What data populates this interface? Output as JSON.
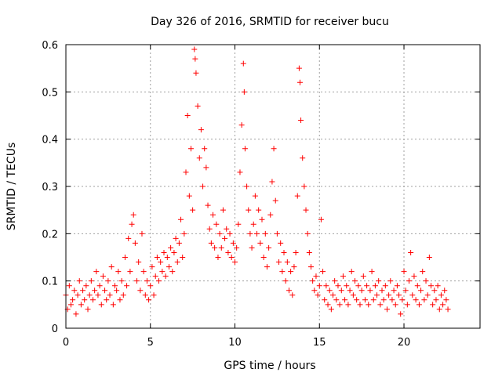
{
  "chart_data": {
    "type": "scatter",
    "title": "Day 326 of 2016, SRMTID for receiver bucu",
    "xlabel": "GPS time / hours",
    "ylabel": "SRMTID / TECUs",
    "xlim": [
      0,
      24.5
    ],
    "ylim": [
      0,
      0.6
    ],
    "x_ticks": [
      0,
      5,
      10,
      15,
      20
    ],
    "x_tick_labels": [
      "0",
      "5",
      "10",
      "15",
      "20"
    ],
    "y_ticks": [
      0,
      0.1,
      0.2,
      0.3,
      0.4,
      0.5,
      0.6
    ],
    "y_tick_labels": [
      "0",
      "0.1",
      "0.2",
      "0.3",
      "0.4",
      "0.5",
      "0.6"
    ],
    "grid": true,
    "marker": "+",
    "color": "#ff0000",
    "series": [
      {
        "name": "SRMTID",
        "points": [
          [
            0.0,
            0.07
          ],
          [
            0.1,
            0.04
          ],
          [
            0.2,
            0.09
          ],
          [
            0.3,
            0.05
          ],
          [
            0.4,
            0.06
          ],
          [
            0.5,
            0.08
          ],
          [
            0.6,
            0.03
          ],
          [
            0.7,
            0.07
          ],
          [
            0.8,
            0.1
          ],
          [
            0.9,
            0.05
          ],
          [
            1.0,
            0.08
          ],
          [
            1.1,
            0.06
          ],
          [
            1.2,
            0.09
          ],
          [
            1.3,
            0.04
          ],
          [
            1.4,
            0.07
          ],
          [
            1.5,
            0.1
          ],
          [
            1.6,
            0.06
          ],
          [
            1.7,
            0.08
          ],
          [
            1.8,
            0.12
          ],
          [
            1.9,
            0.07
          ],
          [
            2.0,
            0.09
          ],
          [
            2.1,
            0.05
          ],
          [
            2.2,
            0.11
          ],
          [
            2.3,
            0.08
          ],
          [
            2.4,
            0.06
          ],
          [
            2.5,
            0.1
          ],
          [
            2.6,
            0.07
          ],
          [
            2.7,
            0.13
          ],
          [
            2.8,
            0.05
          ],
          [
            2.9,
            0.09
          ],
          [
            3.0,
            0.08
          ],
          [
            3.1,
            0.12
          ],
          [
            3.2,
            0.06
          ],
          [
            3.3,
            0.1
          ],
          [
            3.4,
            0.07
          ],
          [
            3.5,
            0.15
          ],
          [
            3.6,
            0.09
          ],
          [
            3.7,
            0.19
          ],
          [
            3.8,
            0.12
          ],
          [
            3.9,
            0.22
          ],
          [
            4.0,
            0.24
          ],
          [
            4.1,
            0.18
          ],
          [
            4.2,
            0.1
          ],
          [
            4.3,
            0.14
          ],
          [
            4.4,
            0.08
          ],
          [
            4.5,
            0.2
          ],
          [
            4.6,
            0.12
          ],
          [
            4.7,
            0.07
          ],
          [
            4.8,
            0.1
          ],
          [
            4.9,
            0.06
          ],
          [
            5.0,
            0.09
          ],
          [
            5.1,
            0.13
          ],
          [
            5.2,
            0.07
          ],
          [
            5.3,
            0.11
          ],
          [
            5.4,
            0.15
          ],
          [
            5.5,
            0.1
          ],
          [
            5.6,
            0.14
          ],
          [
            5.7,
            0.12
          ],
          [
            5.8,
            0.16
          ],
          [
            5.9,
            0.11
          ],
          [
            6.0,
            0.15
          ],
          [
            6.1,
            0.13
          ],
          [
            6.2,
            0.17
          ],
          [
            6.3,
            0.12
          ],
          [
            6.4,
            0.16
          ],
          [
            6.5,
            0.19
          ],
          [
            6.6,
            0.14
          ],
          [
            6.7,
            0.18
          ],
          [
            6.8,
            0.23
          ],
          [
            6.9,
            0.15
          ],
          [
            7.0,
            0.2
          ],
          [
            7.1,
            0.33
          ],
          [
            7.2,
            0.45
          ],
          [
            7.3,
            0.28
          ],
          [
            7.4,
            0.38
          ],
          [
            7.5,
            0.25
          ],
          [
            7.6,
            0.59
          ],
          [
            7.65,
            0.57
          ],
          [
            7.7,
            0.54
          ],
          [
            7.8,
            0.47
          ],
          [
            7.9,
            0.36
          ],
          [
            8.0,
            0.42
          ],
          [
            8.1,
            0.3
          ],
          [
            8.2,
            0.38
          ],
          [
            8.3,
            0.34
          ],
          [
            8.4,
            0.26
          ],
          [
            8.5,
            0.21
          ],
          [
            8.6,
            0.18
          ],
          [
            8.7,
            0.24
          ],
          [
            8.8,
            0.17
          ],
          [
            8.9,
            0.22
          ],
          [
            9.0,
            0.15
          ],
          [
            9.1,
            0.2
          ],
          [
            9.2,
            0.17
          ],
          [
            9.3,
            0.25
          ],
          [
            9.4,
            0.19
          ],
          [
            9.5,
            0.21
          ],
          [
            9.6,
            0.16
          ],
          [
            9.7,
            0.2
          ],
          [
            9.8,
            0.15
          ],
          [
            9.9,
            0.18
          ],
          [
            10.0,
            0.14
          ],
          [
            10.1,
            0.17
          ],
          [
            10.2,
            0.22
          ],
          [
            10.3,
            0.33
          ],
          [
            10.4,
            0.43
          ],
          [
            10.5,
            0.56
          ],
          [
            10.55,
            0.5
          ],
          [
            10.6,
            0.38
          ],
          [
            10.7,
            0.3
          ],
          [
            10.8,
            0.25
          ],
          [
            10.9,
            0.2
          ],
          [
            11.0,
            0.17
          ],
          [
            11.1,
            0.22
          ],
          [
            11.2,
            0.28
          ],
          [
            11.3,
            0.2
          ],
          [
            11.4,
            0.25
          ],
          [
            11.5,
            0.18
          ],
          [
            11.6,
            0.23
          ],
          [
            11.7,
            0.15
          ],
          [
            11.8,
            0.2
          ],
          [
            11.9,
            0.13
          ],
          [
            12.0,
            0.17
          ],
          [
            12.1,
            0.24
          ],
          [
            12.2,
            0.31
          ],
          [
            12.3,
            0.38
          ],
          [
            12.4,
            0.27
          ],
          [
            12.5,
            0.2
          ],
          [
            12.6,
            0.14
          ],
          [
            12.7,
            0.18
          ],
          [
            12.8,
            0.12
          ],
          [
            12.9,
            0.16
          ],
          [
            13.0,
            0.1
          ],
          [
            13.1,
            0.14
          ],
          [
            13.2,
            0.08
          ],
          [
            13.3,
            0.12
          ],
          [
            13.4,
            0.07
          ],
          [
            13.5,
            0.13
          ],
          [
            13.6,
            0.16
          ],
          [
            13.7,
            0.28
          ],
          [
            13.8,
            0.55
          ],
          [
            13.85,
            0.52
          ],
          [
            13.9,
            0.44
          ],
          [
            14.0,
            0.36
          ],
          [
            14.1,
            0.3
          ],
          [
            14.2,
            0.25
          ],
          [
            14.3,
            0.2
          ],
          [
            14.4,
            0.16
          ],
          [
            14.5,
            0.13
          ],
          [
            14.6,
            0.1
          ],
          [
            14.7,
            0.08
          ],
          [
            14.8,
            0.11
          ],
          [
            14.9,
            0.07
          ],
          [
            15.0,
            0.09
          ],
          [
            15.1,
            0.23
          ],
          [
            15.2,
            0.12
          ],
          [
            15.3,
            0.06
          ],
          [
            15.4,
            0.09
          ],
          [
            15.5,
            0.05
          ],
          [
            15.6,
            0.08
          ],
          [
            15.7,
            0.04
          ],
          [
            15.8,
            0.07
          ],
          [
            15.9,
            0.1
          ],
          [
            16.0,
            0.06
          ],
          [
            16.1,
            0.09
          ],
          [
            16.2,
            0.05
          ],
          [
            16.3,
            0.08
          ],
          [
            16.4,
            0.11
          ],
          [
            16.5,
            0.06
          ],
          [
            16.6,
            0.09
          ],
          [
            16.7,
            0.05
          ],
          [
            16.8,
            0.08
          ],
          [
            16.9,
            0.12
          ],
          [
            17.0,
            0.07
          ],
          [
            17.1,
            0.1
          ],
          [
            17.2,
            0.06
          ],
          [
            17.3,
            0.09
          ],
          [
            17.4,
            0.05
          ],
          [
            17.5,
            0.08
          ],
          [
            17.6,
            0.11
          ],
          [
            17.7,
            0.06
          ],
          [
            17.8,
            0.09
          ],
          [
            17.9,
            0.05
          ],
          [
            18.0,
            0.08
          ],
          [
            18.1,
            0.12
          ],
          [
            18.2,
            0.06
          ],
          [
            18.3,
            0.09
          ],
          [
            18.4,
            0.07
          ],
          [
            18.5,
            0.1
          ],
          [
            18.6,
            0.05
          ],
          [
            18.7,
            0.08
          ],
          [
            18.8,
            0.06
          ],
          [
            18.9,
            0.09
          ],
          [
            19.0,
            0.04
          ],
          [
            19.1,
            0.07
          ],
          [
            19.2,
            0.1
          ],
          [
            19.3,
            0.06
          ],
          [
            19.4,
            0.08
          ],
          [
            19.5,
            0.05
          ],
          [
            19.6,
            0.09
          ],
          [
            19.7,
            0.07
          ],
          [
            19.8,
            0.03
          ],
          [
            19.9,
            0.06
          ],
          [
            20.0,
            0.12
          ],
          [
            20.1,
            0.08
          ],
          [
            20.2,
            0.05
          ],
          [
            20.3,
            0.1
          ],
          [
            20.4,
            0.16
          ],
          [
            20.5,
            0.07
          ],
          [
            20.6,
            0.11
          ],
          [
            20.7,
            0.06
          ],
          [
            20.8,
            0.09
          ],
          [
            20.9,
            0.05
          ],
          [
            21.0,
            0.08
          ],
          [
            21.1,
            0.12
          ],
          [
            21.2,
            0.06
          ],
          [
            21.3,
            0.1
          ],
          [
            21.4,
            0.07
          ],
          [
            21.5,
            0.15
          ],
          [
            21.6,
            0.09
          ],
          [
            21.7,
            0.05
          ],
          [
            21.8,
            0.08
          ],
          [
            21.9,
            0.06
          ],
          [
            22.0,
            0.09
          ],
          [
            22.1,
            0.04
          ],
          [
            22.2,
            0.07
          ],
          [
            22.3,
            0.05
          ],
          [
            22.4,
            0.08
          ],
          [
            22.5,
            0.06
          ],
          [
            22.6,
            0.04
          ]
        ]
      }
    ]
  }
}
